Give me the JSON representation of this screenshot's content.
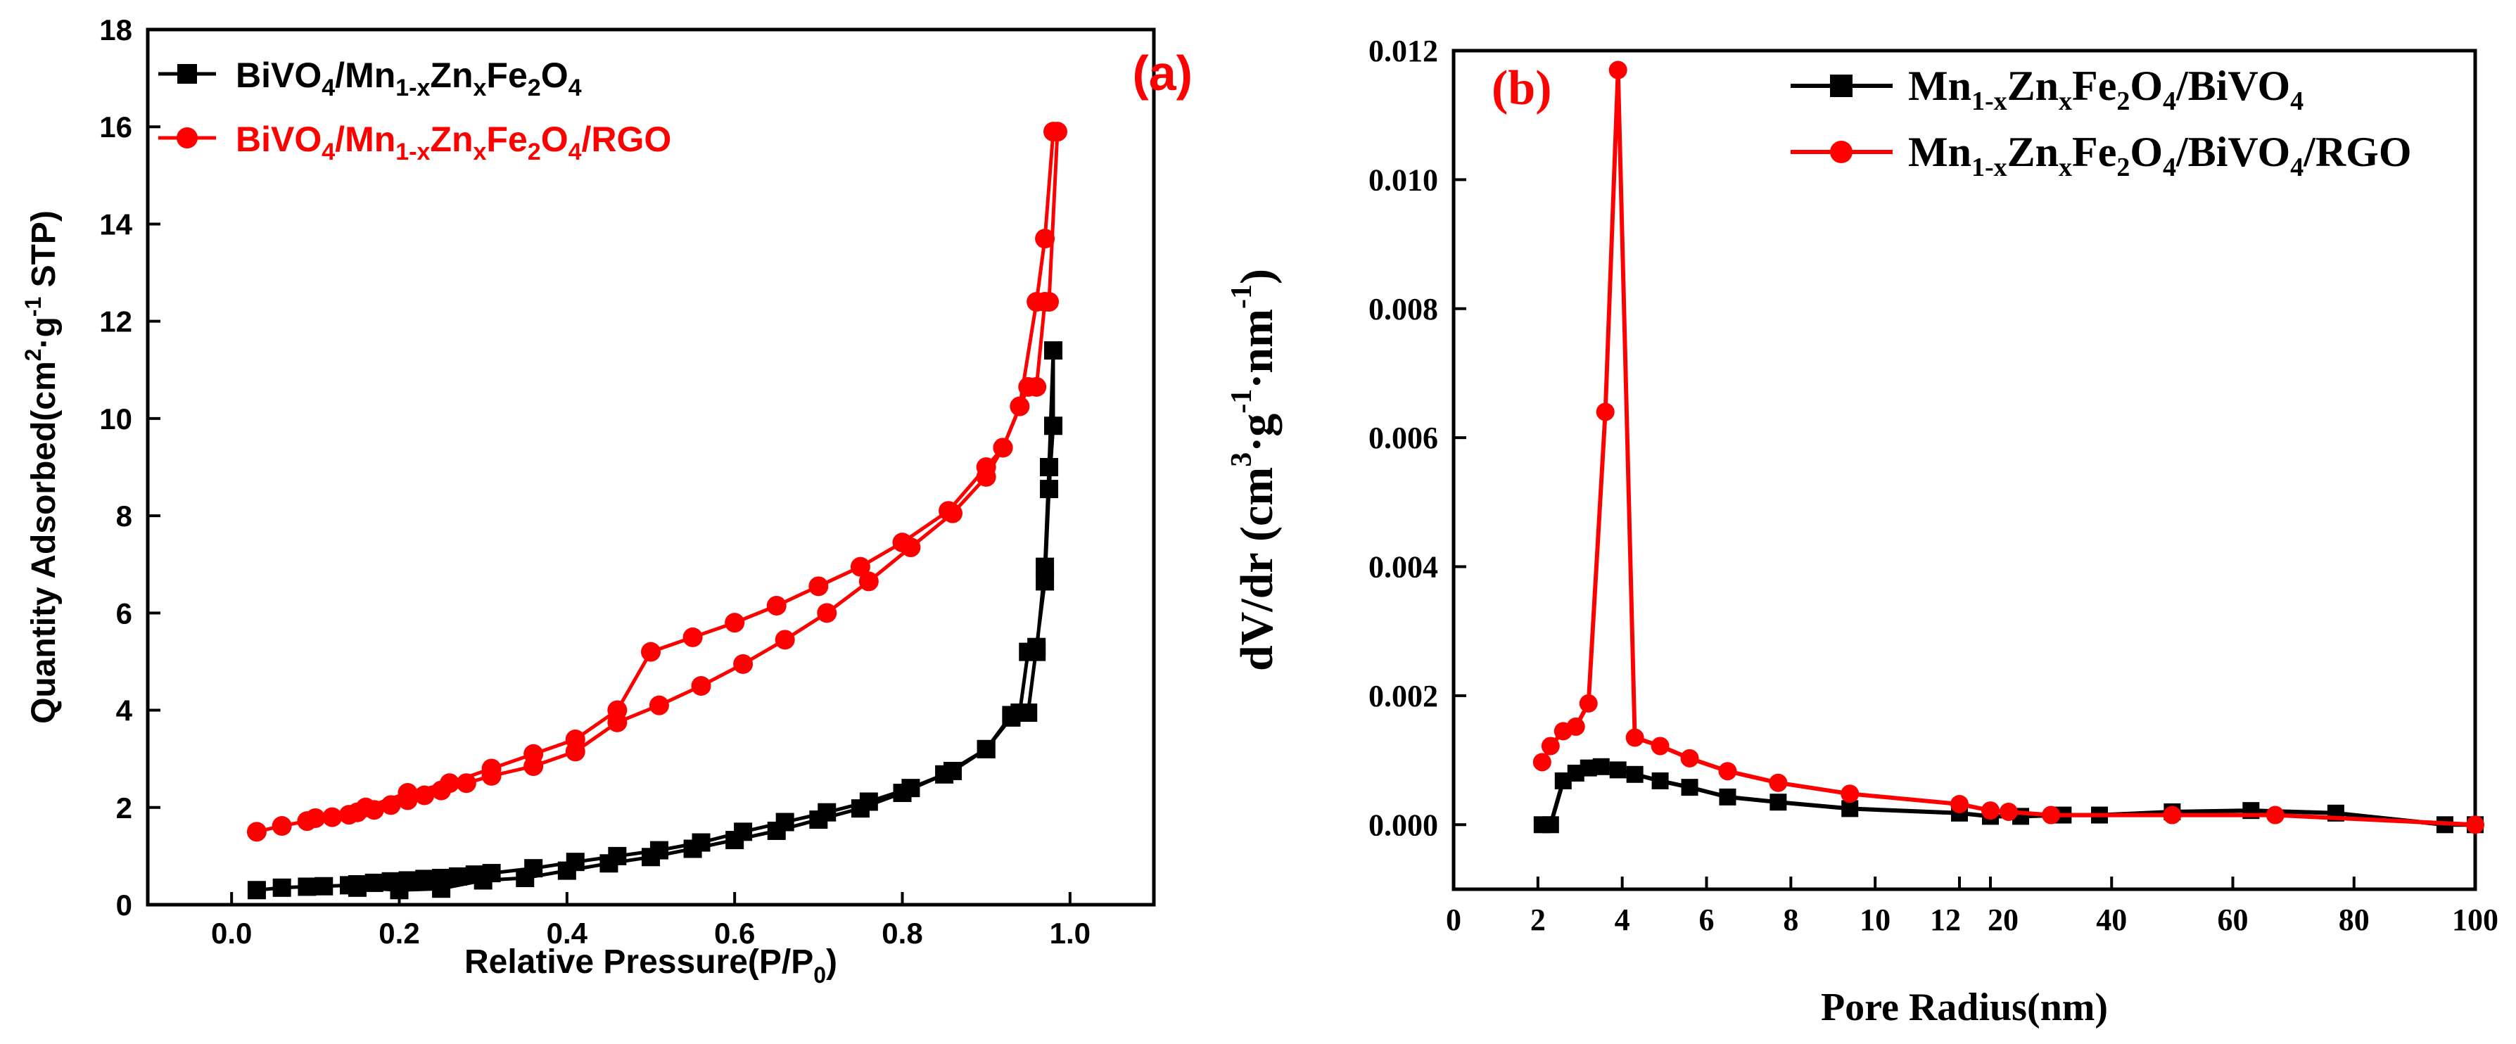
{
  "colors": {
    "black_series": "#000000",
    "red_series": "#ff0000",
    "panel_label": "#ff0000"
  },
  "chart_data": [
    {
      "type": "line",
      "panel_label": "(a)",
      "xlabel": {
        "text": "Relative Pressure(P/P",
        "sub": "0",
        "close": ")"
      },
      "ylabel": {
        "p1": "Quantity  Adsorbed(cm",
        "sup1": "2",
        "p2": "·g",
        "sup2": "-1",
        "p3": " STP)"
      },
      "xlim": [
        -0.1,
        1.1
      ],
      "ylim": [
        0,
        18
      ],
      "xticks": [
        0.0,
        0.2,
        0.4,
        0.6,
        0.8,
        1.0
      ],
      "xtick_labels": [
        "0.0",
        "0.2",
        "0.4",
        "0.6",
        "0.8",
        "1.0"
      ],
      "yticks": [
        0,
        2,
        4,
        6,
        8,
        10,
        12,
        14,
        16,
        18
      ],
      "ytick_labels": [
        "0",
        "2",
        "4",
        "6",
        "8",
        "10",
        "12",
        "14",
        "16",
        "18"
      ],
      "legend": [
        {
          "series": 0,
          "parts": [
            [
              "BiVO",
              ""
            ],
            [
              "4",
              "sub"
            ],
            [
              "/Mn",
              ""
            ],
            [
              "1-x",
              "sub"
            ],
            [
              "Zn",
              ""
            ],
            [
              "x",
              "sub"
            ],
            [
              "Fe",
              ""
            ],
            [
              "2",
              "sub"
            ],
            [
              "O",
              ""
            ],
            [
              "4",
              "sub"
            ]
          ]
        },
        {
          "series": 1,
          "parts": [
            [
              "BiVO",
              ""
            ],
            [
              "4",
              "sub"
            ],
            [
              "/Mn",
              ""
            ],
            [
              "1-x",
              "sub"
            ],
            [
              "Zn",
              ""
            ],
            [
              "x",
              "sub"
            ],
            [
              "Fe",
              ""
            ],
            [
              "2",
              "sub"
            ],
            [
              "O",
              ""
            ],
            [
              "4",
              "sub"
            ],
            [
              "/RGO",
              ""
            ]
          ]
        }
      ],
      "series": [
        {
          "name": "BiVO4/Mn1-xZnxFe2O4",
          "color": "#000000",
          "marker": "square",
          "x": [
            0.03,
            0.06,
            0.09,
            0.11,
            0.14,
            0.15,
            0.17,
            0.19,
            0.21,
            0.23,
            0.25,
            0.27,
            0.29,
            0.31,
            0.36,
            0.41,
            0.46,
            0.51,
            0.56,
            0.61,
            0.66,
            0.71,
            0.76,
            0.81,
            0.86,
            0.9,
            0.93,
            0.95,
            0.96,
            0.97,
            0.975,
            0.98,
            0.98,
            0.975,
            0.97,
            0.96,
            0.95,
            0.94,
            0.93,
            0.9,
            0.85,
            0.8,
            0.75,
            0.7,
            0.65,
            0.6,
            0.55,
            0.5,
            0.45,
            0.4,
            0.35,
            0.3,
            0.25,
            0.2,
            0.15
          ],
          "y": [
            0.3,
            0.35,
            0.37,
            0.38,
            0.4,
            0.42,
            0.45,
            0.48,
            0.5,
            0.53,
            0.55,
            0.58,
            0.62,
            0.65,
            0.75,
            0.88,
            1.0,
            1.12,
            1.28,
            1.5,
            1.7,
            1.9,
            2.12,
            2.4,
            2.75,
            3.2,
            3.85,
            3.95,
            5.3,
            6.65,
            8.55,
            9.85,
            11.4,
            9.0,
            6.95,
            5.2,
            5.2,
            3.95,
            3.9,
            3.2,
            2.68,
            2.3,
            1.98,
            1.75,
            1.52,
            1.33,
            1.15,
            0.98,
            0.85,
            0.7,
            0.55,
            0.5,
            0.33,
            0.3,
            0.35
          ]
        },
        {
          "name": "BiVO4/Mn1-xZnxFe2O4/RGO",
          "color": "#ff0000",
          "marker": "circle",
          "x": [
            0.03,
            0.06,
            0.09,
            0.1,
            0.12,
            0.14,
            0.15,
            0.17,
            0.19,
            0.21,
            0.23,
            0.25,
            0.28,
            0.31,
            0.36,
            0.41,
            0.46,
            0.51,
            0.56,
            0.61,
            0.66,
            0.71,
            0.76,
            0.81,
            0.86,
            0.9,
            0.92,
            0.94,
            0.96,
            0.97,
            0.98,
            0.985,
            0.975,
            0.97,
            0.96,
            0.95,
            0.92,
            0.9,
            0.855,
            0.8,
            0.75,
            0.7,
            0.65,
            0.6,
            0.55,
            0.5,
            0.46,
            0.41,
            0.36,
            0.31,
            0.26,
            0.21,
            0.16
          ],
          "y": [
            1.5,
            1.62,
            1.72,
            1.78,
            1.8,
            1.85,
            1.9,
            1.95,
            2.05,
            2.15,
            2.25,
            2.35,
            2.5,
            2.65,
            2.85,
            3.15,
            3.75,
            4.1,
            4.5,
            4.95,
            5.45,
            6.0,
            6.65,
            7.35,
            8.05,
            8.8,
            9.4,
            10.25,
            12.4,
            13.7,
            15.9,
            15.9,
            12.4,
            12.4,
            10.65,
            10.65,
            9.4,
            9.0,
            8.1,
            7.45,
            6.95,
            6.55,
            6.15,
            5.8,
            5.5,
            5.2,
            4.0,
            3.4,
            3.1,
            2.8,
            2.5,
            2.3,
            2.0
          ]
        }
      ]
    },
    {
      "type": "line",
      "panel_label": "(b)",
      "xlabel": "Pore Radius(nm)",
      "ylabel": {
        "p1": "dV/dr (cm",
        "sup1": "3",
        "p2": "·g",
        "sup2": "-1",
        "p3": "·nm",
        "sup3": "-1",
        "p4": ")"
      },
      "axis_break_note": "x axis is broken at 12|20: 0–12 nm linear, then 20–100 nm compressed",
      "ylim": [
        -0.001,
        0.012
      ],
      "xticks": [
        0,
        2,
        4,
        6,
        8,
        10,
        12,
        20,
        40,
        60,
        80,
        100
      ],
      "xtick_labels": [
        "0",
        "2",
        "4",
        "6",
        "8",
        "10",
        "12",
        "20",
        "40",
        "60",
        "80",
        "100"
      ],
      "yticks": [
        0.0,
        0.002,
        0.004,
        0.006,
        0.008,
        0.01,
        0.012
      ],
      "ytick_labels": [
        "0.000",
        "0.002",
        "0.004",
        "0.006",
        "0.008",
        "0.010",
        "0.012"
      ],
      "legend": [
        {
          "series": 0,
          "parts": [
            [
              "Mn",
              ""
            ],
            [
              "1-x",
              "sub"
            ],
            [
              "Zn",
              ""
            ],
            [
              "x",
              "sub"
            ],
            [
              "Fe",
              ""
            ],
            [
              "2",
              "sub"
            ],
            [
              "O",
              ""
            ],
            [
              "4",
              "sub"
            ],
            [
              "/BiVO",
              ""
            ],
            [
              "4",
              "sub"
            ]
          ]
        },
        {
          "series": 1,
          "parts": [
            [
              "Mn",
              ""
            ],
            [
              "1-x",
              "sub"
            ],
            [
              "Zn",
              ""
            ],
            [
              "x",
              "sub"
            ],
            [
              "Fe",
              ""
            ],
            [
              "2",
              "sub"
            ],
            [
              "O",
              ""
            ],
            [
              "4",
              "sub"
            ],
            [
              "/BiVO",
              ""
            ],
            [
              "4",
              "sub"
            ],
            [
              "/RGO",
              ""
            ]
          ]
        }
      ],
      "series": [
        {
          "name": "Mn1-xZnxFe2O4/BiVO4",
          "color": "#000000",
          "marker": "square",
          "x": [
            2.1,
            2.3,
            2.6,
            2.9,
            3.2,
            3.5,
            3.9,
            4.3,
            4.9,
            5.6,
            6.5,
            7.7,
            9.4,
            12.0,
            20.0,
            25.0,
            32.0,
            38.0,
            50.0,
            63.0,
            77.0,
            95.0,
            100.0
          ],
          "y": [
            0.0,
            0.0,
            0.00068,
            0.0008,
            0.00088,
            0.0009,
            0.00085,
            0.00078,
            0.00068,
            0.00058,
            0.00043,
            0.00035,
            0.00025,
            0.00018,
            0.00013,
            0.00013,
            0.00015,
            0.00015,
            0.0002,
            0.00022,
            0.00018,
            0.0,
            0.0
          ]
        },
        {
          "name": "Mn1-xZnxFe2O4/BiVO4/RGO",
          "color": "#ff0000",
          "marker": "circle",
          "x": [
            2.1,
            2.3,
            2.6,
            2.9,
            3.2,
            3.6,
            3.9,
            4.3,
            4.9,
            5.6,
            6.5,
            7.7,
            9.4,
            12.0,
            20.0,
            23.0,
            30.0,
            50.0,
            67.0,
            100.0
          ],
          "y": [
            0.00097,
            0.00122,
            0.00145,
            0.00152,
            0.00188,
            0.0064,
            0.0117,
            0.00135,
            0.00122,
            0.00103,
            0.00083,
            0.00065,
            0.00048,
            0.00032,
            0.00022,
            0.0002,
            0.00015,
            0.00015,
            0.00015,
            0.0
          ]
        }
      ]
    }
  ]
}
